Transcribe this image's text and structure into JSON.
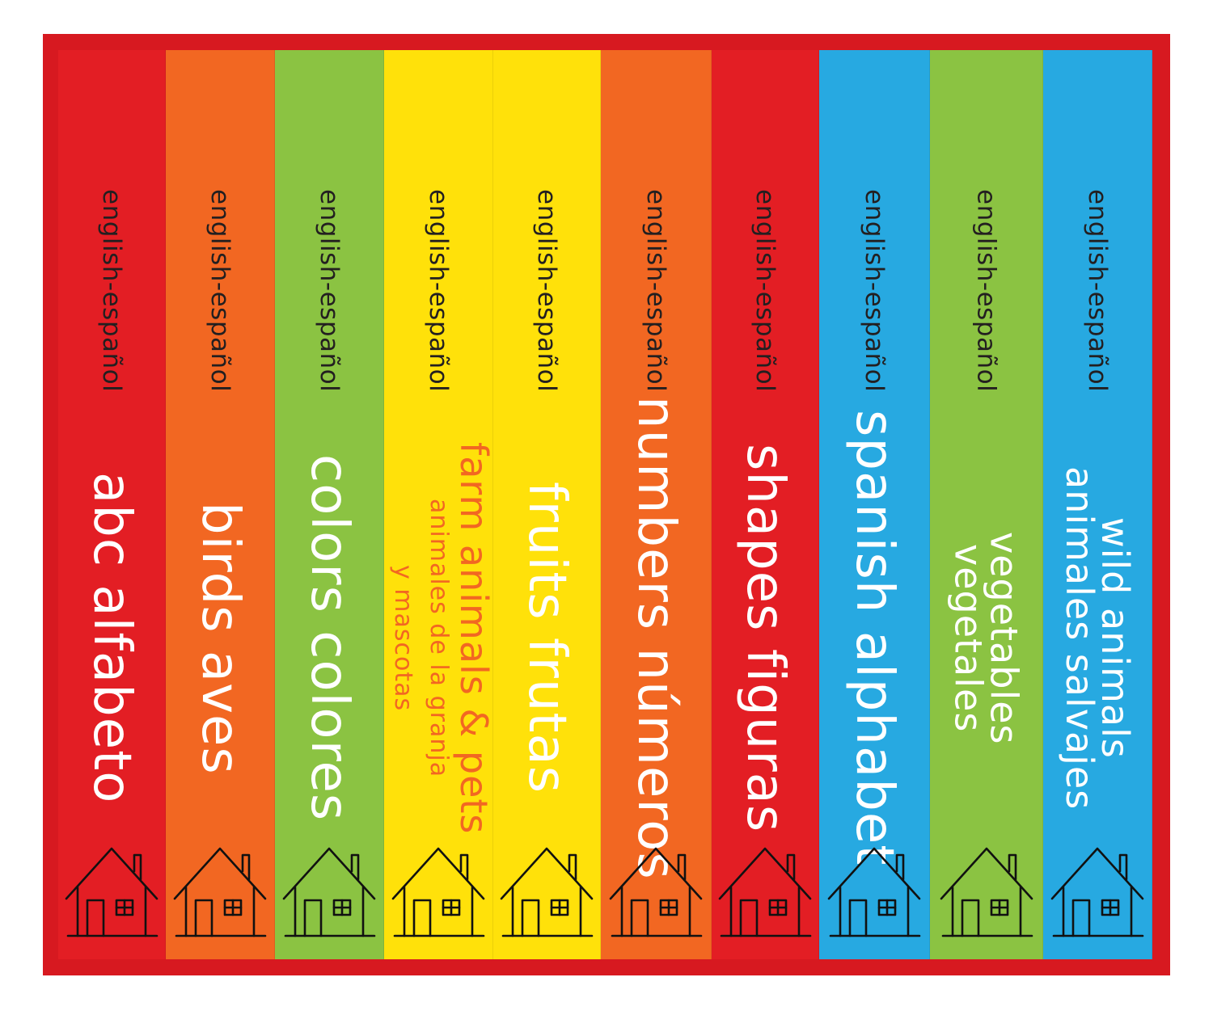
{
  "colors": {
    "frame": "#d71920",
    "red": "#e31e24",
    "orange": "#f26722",
    "green": "#8bc342",
    "yellow": "#ffe10a",
    "blue": "#27a9e1"
  },
  "spines": [
    {
      "subtitle": "english-español",
      "title_lines": [
        "abc alfabeto"
      ],
      "color": "#e31e24",
      "text_color": "#ffffff",
      "icon": "house-icon"
    },
    {
      "subtitle": "english-español",
      "title_lines": [
        "birds aves"
      ],
      "color": "#f26722",
      "text_color": "#ffffff",
      "icon": "house-icon"
    },
    {
      "subtitle": "english-español",
      "title_lines": [
        "colors colores"
      ],
      "color": "#8bc342",
      "text_color": "#ffffff",
      "icon": "house-icon"
    },
    {
      "subtitle": "english-español",
      "title_lines": [
        "farm animals & pets",
        "animales de la granja",
        "y mascotas"
      ],
      "color": "#ffe10a",
      "text_color": "#f26722",
      "icon": "house-icon"
    },
    {
      "subtitle": "english-español",
      "title_lines": [
        "fruits frutas"
      ],
      "color": "#ffe10a",
      "text_color": "#ffffff",
      "icon": "house-icon"
    },
    {
      "subtitle": "english-español",
      "title_lines": [
        "numbers números"
      ],
      "color": "#f26722",
      "text_color": "#ffffff",
      "icon": "house-icon"
    },
    {
      "subtitle": "english-español",
      "title_lines": [
        "shapes figuras"
      ],
      "color": "#e31e24",
      "text_color": "#ffffff",
      "icon": "house-icon"
    },
    {
      "subtitle": "english-español",
      "title_lines": [
        "spanish alphabet"
      ],
      "color": "#27a9e1",
      "text_color": "#ffffff",
      "icon": "house-icon"
    },
    {
      "subtitle": "english-español",
      "title_lines": [
        "vegetables",
        "vegetales"
      ],
      "color": "#8bc342",
      "text_color": "#ffffff",
      "icon": "house-icon"
    },
    {
      "subtitle": "english-español",
      "title_lines": [
        "wild animals",
        "animales salvajes"
      ],
      "color": "#27a9e1",
      "text_color": "#ffffff",
      "icon": "house-icon"
    }
  ]
}
